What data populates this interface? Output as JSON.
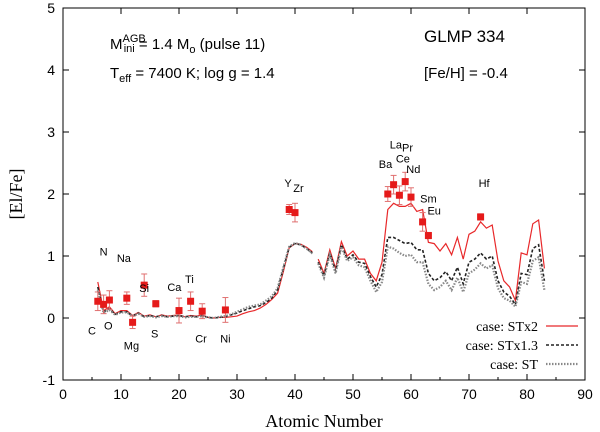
{
  "chart_data": {
    "type": "scatter",
    "xlabel": "Atomic Number",
    "ylabel": "[El/Fe]",
    "xlim": [
      0,
      90
    ],
    "ylim": [
      -1,
      5
    ],
    "x_ticks": [
      "0",
      "10",
      "20",
      "30",
      "40",
      "50",
      "60",
      "70",
      "80",
      "90"
    ],
    "y_ticks": [
      "-1",
      "0",
      "1",
      "2",
      "3",
      "4",
      "5"
    ],
    "grid": false,
    "legend_position": "bottom-right",
    "star_name": "GLMP 334",
    "metallicity": "[Fe/H] = -0.4",
    "mass_line": {
      "sym": "M",
      "sup": "AGB",
      "sub": "ini",
      "eq": " = 1.4 M",
      "sub2": "o",
      "tail": " (pulse 11)"
    },
    "teff_line": {
      "sym": "T",
      "sub": "eff",
      "tail": " = 7400 K; log g = 1.4"
    },
    "series": [
      {
        "name": "case: STx2",
        "style": "solid",
        "color": "#e8282a",
        "segments": [
          {
            "x": [
              6,
              7,
              8,
              9,
              10,
              11,
              12,
              13,
              14,
              15,
              16,
              17,
              18,
              19,
              20,
              21,
              22,
              23,
              24,
              25,
              26,
              27,
              28,
              29,
              30,
              31,
              32,
              33,
              34,
              35,
              36,
              37,
              38,
              39,
              40,
              41,
              42,
              43
            ],
            "y": [
              0.58,
              0.12,
              0.18,
              0.07,
              0.12,
              0.12,
              0.04,
              0.09,
              0.03,
              0.05,
              0.02,
              0.05,
              0.03,
              0.04,
              0.05,
              0.02,
              0.04,
              0.03,
              0.05,
              0.01,
              0.0,
              0.01,
              0.01,
              0.02,
              0.03,
              0.07,
              0.1,
              0.12,
              0.16,
              0.22,
              0.3,
              0.4,
              0.75,
              1.13,
              1.2,
              1.19,
              1.14,
              1.07
            ]
          },
          {
            "x": [
              44,
              45,
              46,
              47,
              48,
              49,
              50,
              51,
              52,
              53,
              54,
              55,
              56,
              57,
              58,
              59,
              60,
              61,
              62,
              63,
              64,
              65,
              66,
              67,
              68,
              69,
              70,
              71,
              72,
              73,
              74,
              75,
              76,
              77,
              78,
              79,
              80,
              81,
              82,
              83
            ],
            "y": [
              0.95,
              0.72,
              1.1,
              0.8,
              1.23,
              1.0,
              1.08,
              0.95,
              0.95,
              0.72,
              0.6,
              0.9,
              1.75,
              1.85,
              1.8,
              1.8,
              1.85,
              1.72,
              1.75,
              1.22,
              1.2,
              1.08,
              1.2,
              1.02,
              1.3,
              0.95,
              1.35,
              1.4,
              1.55,
              1.45,
              1.5,
              0.92,
              0.6,
              0.5,
              0.28,
              1.05,
              1.02,
              1.52,
              1.58,
              0.8
            ]
          }
        ]
      },
      {
        "name": "case: STx1.3",
        "style": "dashed",
        "color": "#222222",
        "segments": [
          {
            "x": [
              6,
              7,
              8,
              9,
              10,
              11,
              12,
              13,
              14,
              15,
              16,
              17,
              18,
              19,
              20,
              21,
              22,
              23,
              24,
              25,
              26,
              27,
              28,
              29,
              30,
              31,
              32,
              33,
              34,
              35,
              36,
              37,
              38,
              39,
              40,
              41,
              42,
              43
            ],
            "y": [
              0.5,
              0.1,
              0.15,
              0.06,
              0.1,
              0.1,
              0.03,
              0.08,
              0.02,
              0.04,
              0.02,
              0.04,
              0.02,
              0.03,
              0.04,
              0.02,
              0.03,
              0.02,
              0.04,
              0.01,
              0.0,
              0.01,
              0.02,
              0.05,
              0.08,
              0.12,
              0.15,
              0.18,
              0.2,
              0.25,
              0.32,
              0.45,
              0.8,
              1.14,
              1.2,
              1.18,
              1.12,
              1.05
            ]
          },
          {
            "x": [
              44,
              45,
              46,
              47,
              48,
              49,
              50,
              51,
              52,
              53,
              54,
              55,
              56,
              57,
              58,
              59,
              60,
              61,
              62,
              63,
              64,
              65,
              66,
              67,
              68,
              69,
              70,
              71,
              72,
              73,
              74,
              75,
              76,
              77,
              78,
              79,
              80,
              81,
              82,
              83
            ],
            "y": [
              0.9,
              0.68,
              1.05,
              0.76,
              1.18,
              0.95,
              1.02,
              0.9,
              0.88,
              0.67,
              0.5,
              0.7,
              1.3,
              1.3,
              1.25,
              1.2,
              1.22,
              1.1,
              1.1,
              0.72,
              0.6,
              0.65,
              0.75,
              0.6,
              0.82,
              0.55,
              0.9,
              0.95,
              1.05,
              0.95,
              1.0,
              0.6,
              0.42,
              0.35,
              0.22,
              0.72,
              0.7,
              1.12,
              1.18,
              0.6
            ]
          }
        ]
      },
      {
        "name": "case: ST",
        "style": "dotted",
        "color": "#888888",
        "segments": [
          {
            "x": [
              6,
              7,
              8,
              9,
              10,
              11,
              12,
              13,
              14,
              15,
              16,
              17,
              18,
              19,
              20,
              21,
              22,
              23,
              24,
              25,
              26,
              27,
              28,
              29,
              30,
              31,
              32,
              33,
              34,
              35,
              36,
              37,
              38,
              39,
              40,
              41,
              42,
              43
            ],
            "y": [
              0.45,
              0.08,
              0.13,
              0.05,
              0.09,
              0.09,
              0.03,
              0.07,
              0.02,
              0.03,
              0.01,
              0.03,
              0.02,
              0.03,
              0.03,
              0.01,
              0.02,
              0.02,
              0.03,
              0.01,
              0.0,
              0.02,
              0.03,
              0.06,
              0.1,
              0.14,
              0.18,
              0.2,
              0.22,
              0.28,
              0.35,
              0.48,
              0.82,
              1.15,
              1.21,
              1.18,
              1.12,
              1.04
            ]
          },
          {
            "x": [
              44,
              45,
              46,
              47,
              48,
              49,
              50,
              51,
              52,
              53,
              54,
              55,
              56,
              57,
              58,
              59,
              60,
              61,
              62,
              63,
              64,
              65,
              66,
              67,
              68,
              69,
              70,
              71,
              72,
              73,
              74,
              75,
              76,
              77,
              78,
              79,
              80,
              81,
              82,
              83
            ],
            "y": [
              0.88,
              0.65,
              1.02,
              0.72,
              1.15,
              0.92,
              0.98,
              0.85,
              0.82,
              0.6,
              0.42,
              0.58,
              1.15,
              1.12,
              1.05,
              1.0,
              1.02,
              0.9,
              0.9,
              0.55,
              0.45,
              0.5,
              0.6,
              0.45,
              0.65,
              0.42,
              0.72,
              0.78,
              0.88,
              0.8,
              0.85,
              0.48,
              0.32,
              0.28,
              0.18,
              0.58,
              0.55,
              0.92,
              0.98,
              0.45
            ]
          }
        ]
      }
    ],
    "observations": [
      {
        "el": "C",
        "x": 6,
        "y": 0.27,
        "err": 0.15
      },
      {
        "el": "N",
        "x": 7,
        "y": 0.22,
        "err": 0.15
      },
      {
        "el": "O",
        "x": 8,
        "y": 0.29,
        "err": 0.15
      },
      {
        "el": "Na",
        "x": 11,
        "y": 0.32,
        "err": 0.1
      },
      {
        "el": "Mg",
        "x": 12,
        "y": -0.07,
        "err": 0.1
      },
      {
        "el": "Si",
        "x": 14,
        "y": 0.53,
        "err": 0.18
      },
      {
        "el": "S",
        "x": 16,
        "y": 0.23,
        "err": 0.05
      },
      {
        "el": "Ca",
        "x": 20,
        "y": 0.12,
        "err": 0.2
      },
      {
        "el": "Ti",
        "x": 22,
        "y": 0.27,
        "err": 0.15
      },
      {
        "el": "Cr",
        "x": 24,
        "y": 0.11,
        "err": 0.12
      },
      {
        "el": "Ni",
        "x": 28,
        "y": 0.13,
        "err": 0.2
      },
      {
        "el": "Y",
        "x": 39,
        "y": 1.75,
        "err": 0.08
      },
      {
        "el": "Zr",
        "x": 40,
        "y": 1.7,
        "err": 0.15
      },
      {
        "el": "Ba",
        "x": 56,
        "y": 2.0,
        "err": 0.12
      },
      {
        "el": "La",
        "x": 57,
        "y": 2.15,
        "err": 0.15
      },
      {
        "el": "Ce",
        "x": 58,
        "y": 1.98,
        "err": 0.15
      },
      {
        "el": "Pr",
        "x": 59,
        "y": 2.2,
        "err": 0.15
      },
      {
        "el": "Nd",
        "x": 60,
        "y": 1.95,
        "err": 0.15
      },
      {
        "el": "Sm",
        "x": 62,
        "y": 1.55,
        "err": 0.15
      },
      {
        "el": "Eu",
        "x": 63,
        "y": 1.33,
        "err": 0.05
      },
      {
        "el": "Hf",
        "x": 72,
        "y": 1.63,
        "err": 0.05
      }
    ],
    "element_labels": [
      {
        "text": "C",
        "x": 5.0,
        "y": -0.2
      },
      {
        "text": "N",
        "x": 7.0,
        "y": 1.07
      },
      {
        "text": "O",
        "x": 7.8,
        "y": -0.12
      },
      {
        "text": "Na",
        "x": 10.5,
        "y": 0.97
      },
      {
        "text": "Si",
        "x": 14.0,
        "y": 0.48
      },
      {
        "text": "Mg",
        "x": 11.8,
        "y": -0.44
      },
      {
        "text": "S",
        "x": 15.8,
        "y": -0.25
      },
      {
        "text": "Ca",
        "x": 19.2,
        "y": 0.5
      },
      {
        "text": "Ti",
        "x": 21.8,
        "y": 0.63
      },
      {
        "text": "Cr",
        "x": 23.8,
        "y": -0.33
      },
      {
        "text": "Ni",
        "x": 28.0,
        "y": -0.33
      },
      {
        "text": "Y",
        "x": 38.8,
        "y": 2.18
      },
      {
        "text": "Zr",
        "x": 40.6,
        "y": 2.1
      },
      {
        "text": "Ba",
        "x": 55.6,
        "y": 2.48
      },
      {
        "text": "La",
        "x": 57.4,
        "y": 2.8
      },
      {
        "text": "Pr",
        "x": 59.4,
        "y": 2.75
      },
      {
        "text": "Ce",
        "x": 58.6,
        "y": 2.57
      },
      {
        "text": "Nd",
        "x": 60.4,
        "y": 2.4
      },
      {
        "text": "Sm",
        "x": 63.0,
        "y": 1.93
      },
      {
        "text": "Eu",
        "x": 64.0,
        "y": 1.73
      },
      {
        "text": "Hf",
        "x": 72.6,
        "y": 2.18
      }
    ],
    "colors": {
      "observation": "#e51a1a",
      "errorbar": "#e07070",
      "axis": "#000000"
    }
  }
}
